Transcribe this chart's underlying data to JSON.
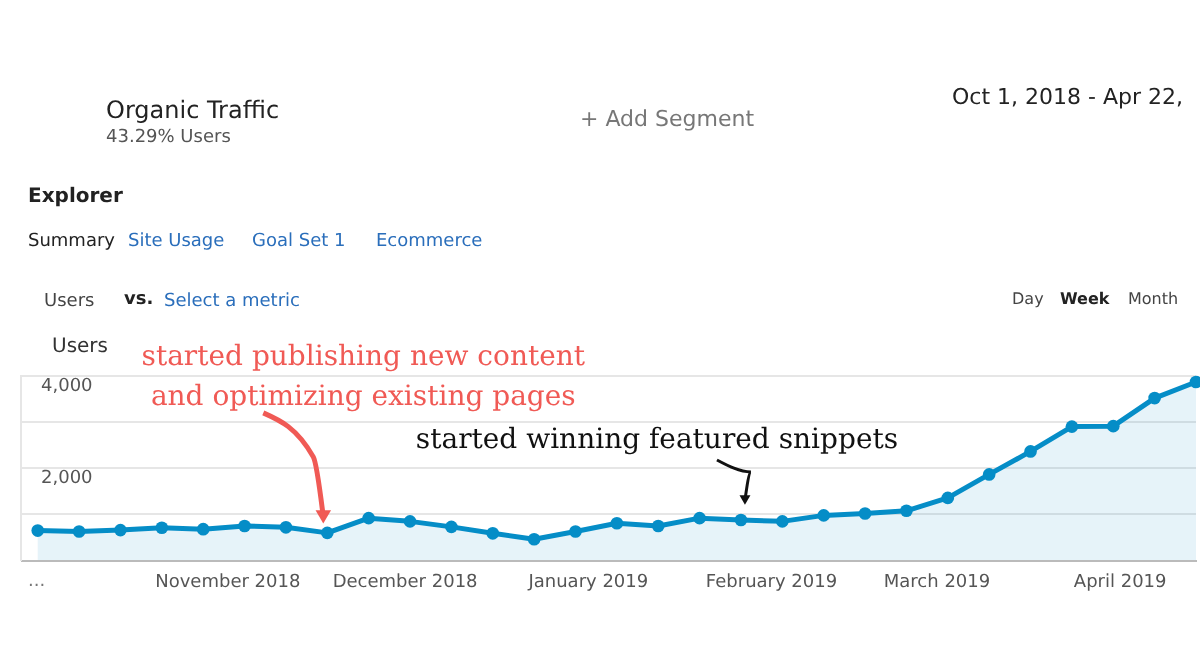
{
  "chart_data": {
    "type": "area",
    "x": [
      "2018-09-30",
      "2018-10-07",
      "2018-10-14",
      "2018-10-21",
      "2018-10-28",
      "2018-11-04",
      "2018-11-11",
      "2018-11-18",
      "2018-11-25",
      "2018-12-02",
      "2018-12-09",
      "2018-12-16",
      "2018-12-23",
      "2018-12-30",
      "2019-01-06",
      "2019-01-13",
      "2019-01-20",
      "2019-01-27",
      "2019-02-03",
      "2019-02-10",
      "2019-02-17",
      "2019-02-24",
      "2019-03-03",
      "2019-03-10",
      "2019-03-17",
      "2019-03-24",
      "2019-03-31",
      "2019-04-07",
      "2019-04-14"
    ],
    "series": [
      {
        "name": "Users",
        "color": "#058dc7",
        "values": [
          640,
          620,
          650,
          700,
          670,
          740,
          710,
          590,
          910,
          840,
          720,
          580,
          450,
          620,
          800,
          740,
          910,
          870,
          840,
          970,
          1010,
          1070,
          1350,
          1860,
          2360,
          2900,
          2910,
          3520,
          3870
        ]
      }
    ],
    "xlim": [
      "2018-09-27",
      "2019-04-14"
    ],
    "xticks": [
      {
        "value": "2018-11-01",
        "label": "November 2018"
      },
      {
        "value": "2018-12-01",
        "label": "December 2018"
      },
      {
        "value": "2019-01-01",
        "label": "January 2019"
      },
      {
        "value": "2019-02-01",
        "label": "February 2019"
      },
      {
        "value": "2019-03-01",
        "label": "March 2019"
      },
      {
        "value": "2019-04-01",
        "label": "April 2019"
      }
    ],
    "ylim": [
      0,
      4000
    ],
    "yticks": [
      {
        "value": 1000,
        "label": null
      },
      {
        "value": 2000,
        "label": "2,000"
      },
      {
        "value": 3000,
        "label": null
      },
      {
        "value": 4000,
        "label": "4,000"
      }
    ],
    "grid": "y",
    "legend": "top left",
    "marker": "circle",
    "line_style": "solid",
    "annotations": [
      {
        "text": "started publishing new content\nand optimizing existing pages",
        "x": "2018-11-18",
        "y": 590
      },
      {
        "text": "started winning featured snippets",
        "x": "2019-01-27",
        "y": 870
      },
      "Organic Traffic",
      "43.29% Users",
      "+ Add Segment",
      "Oct 1, 2018 - Apr 22,",
      "Explorer",
      "Summary",
      "Site Usage",
      "Goal Set 1",
      "Ecommerce",
      "Users",
      "vs.",
      "Select a metric",
      "Day",
      "Week",
      "Month",
      "..."
    ]
  }
}
